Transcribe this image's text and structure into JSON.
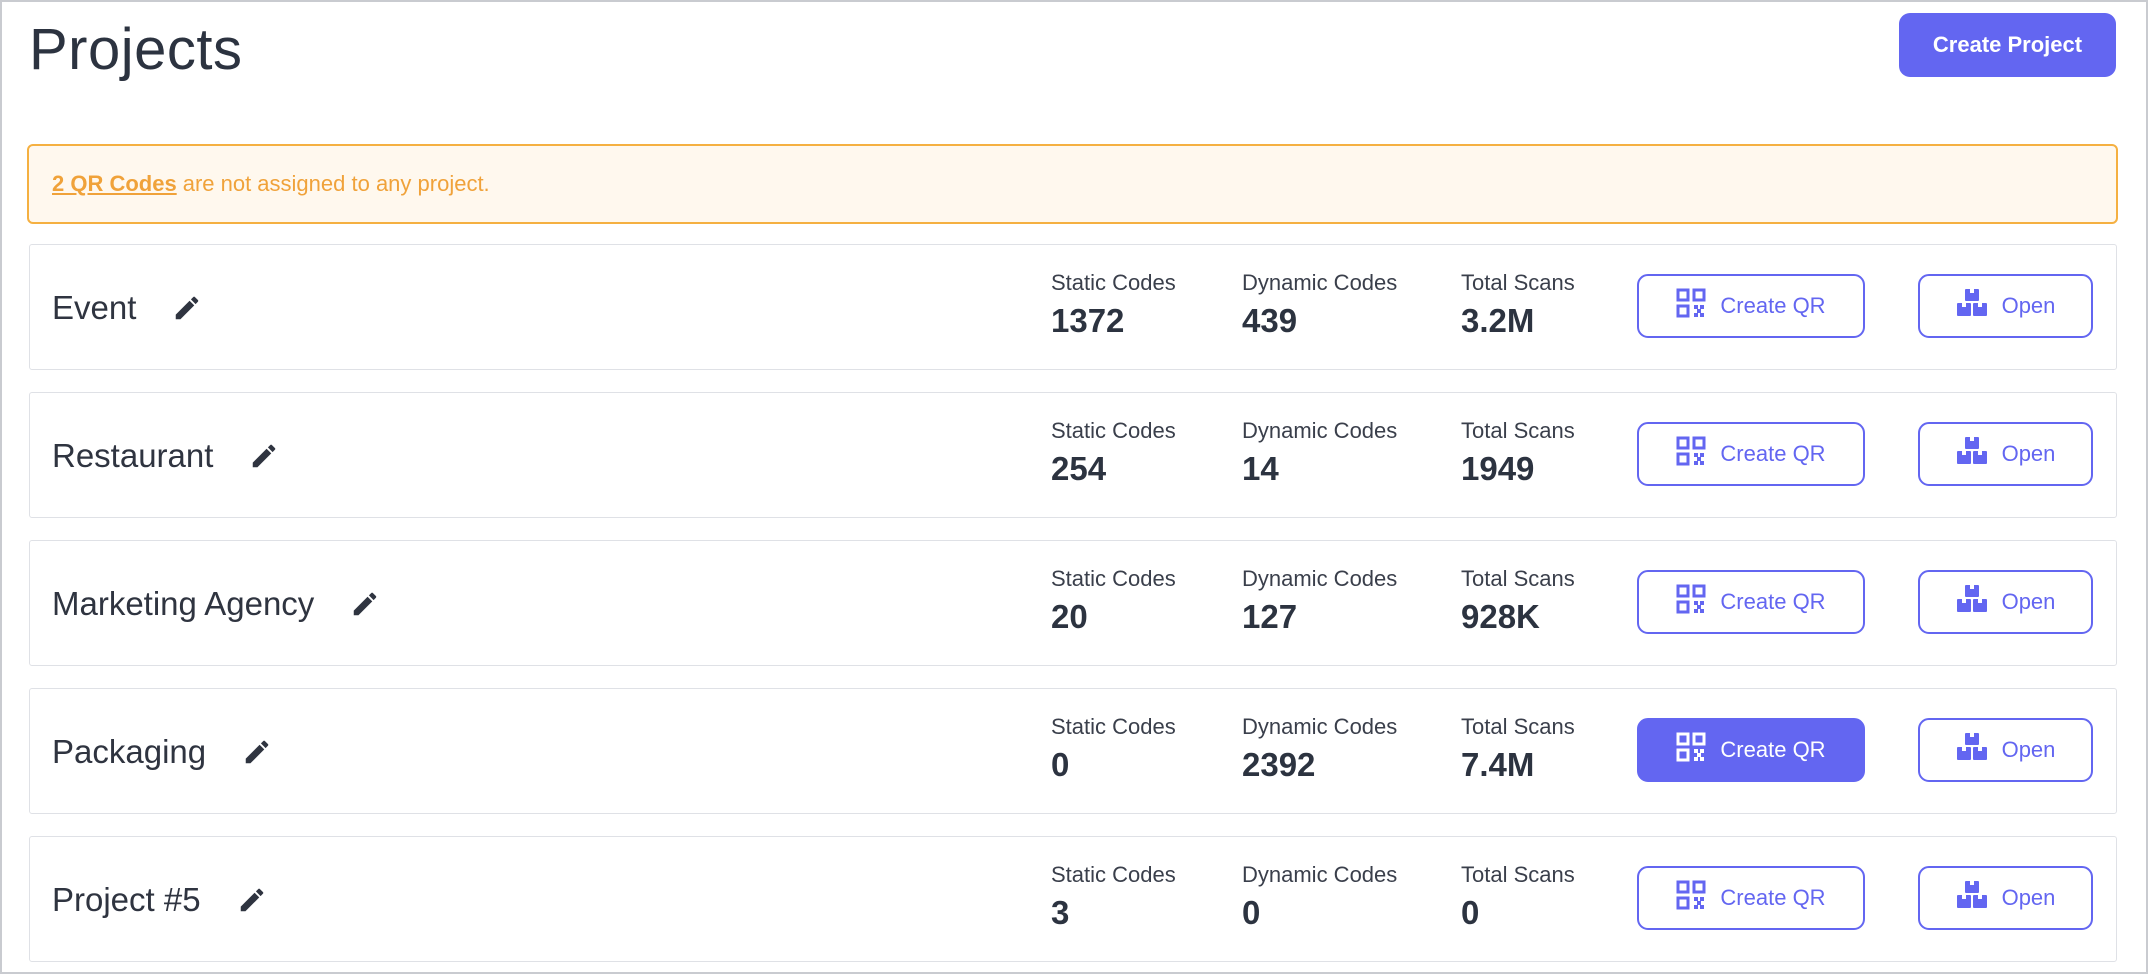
{
  "header": {
    "title": "Projects",
    "create_project_label": "Create Project"
  },
  "alert": {
    "link_text": "2 QR Codes",
    "message": "are not assigned to any project."
  },
  "labels": {
    "static": "Static Codes",
    "dynamic": "Dynamic Codes",
    "scans": "Total Scans",
    "create_qr": "Create QR",
    "open": "Open"
  },
  "colors": {
    "accent": "#6366f1",
    "alert_text": "#f0a23a",
    "alert_border": "#f5b041"
  },
  "icons": {
    "edit": "pencil-icon",
    "create_qr": "qr-code-icon",
    "open": "boxes-icon"
  },
  "projects": [
    {
      "name": "Event",
      "static": "1372",
      "dynamic": "439",
      "scans": "3.2M",
      "create_qr_active": false
    },
    {
      "name": "Restaurant",
      "static": "254",
      "dynamic": "14",
      "scans": "1949",
      "create_qr_active": false
    },
    {
      "name": "Marketing Agency",
      "static": "20",
      "dynamic": "127",
      "scans": "928K",
      "create_qr_active": false
    },
    {
      "name": "Packaging",
      "static": "0",
      "dynamic": "2392",
      "scans": "7.4M",
      "create_qr_active": true
    },
    {
      "name": "Project #5",
      "static": "3",
      "dynamic": "0",
      "scans": "0",
      "create_qr_active": false
    }
  ]
}
